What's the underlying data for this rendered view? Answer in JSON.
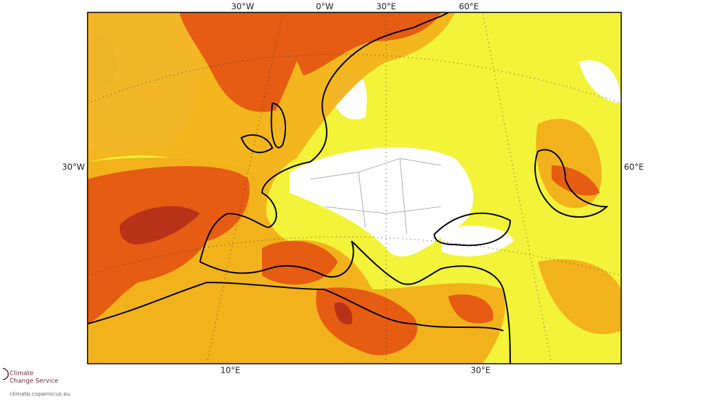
{
  "map": {
    "labels": {
      "top": [
        "30°W",
        "0°W",
        "30°E",
        "60°E"
      ],
      "left": "30°W",
      "right": "60°E",
      "bottom": [
        "10°E",
        "30°E"
      ]
    }
  },
  "logo": {
    "line1": "Climate",
    "line2": "Change Service",
    "url": "climate.copernicus.eu"
  }
}
